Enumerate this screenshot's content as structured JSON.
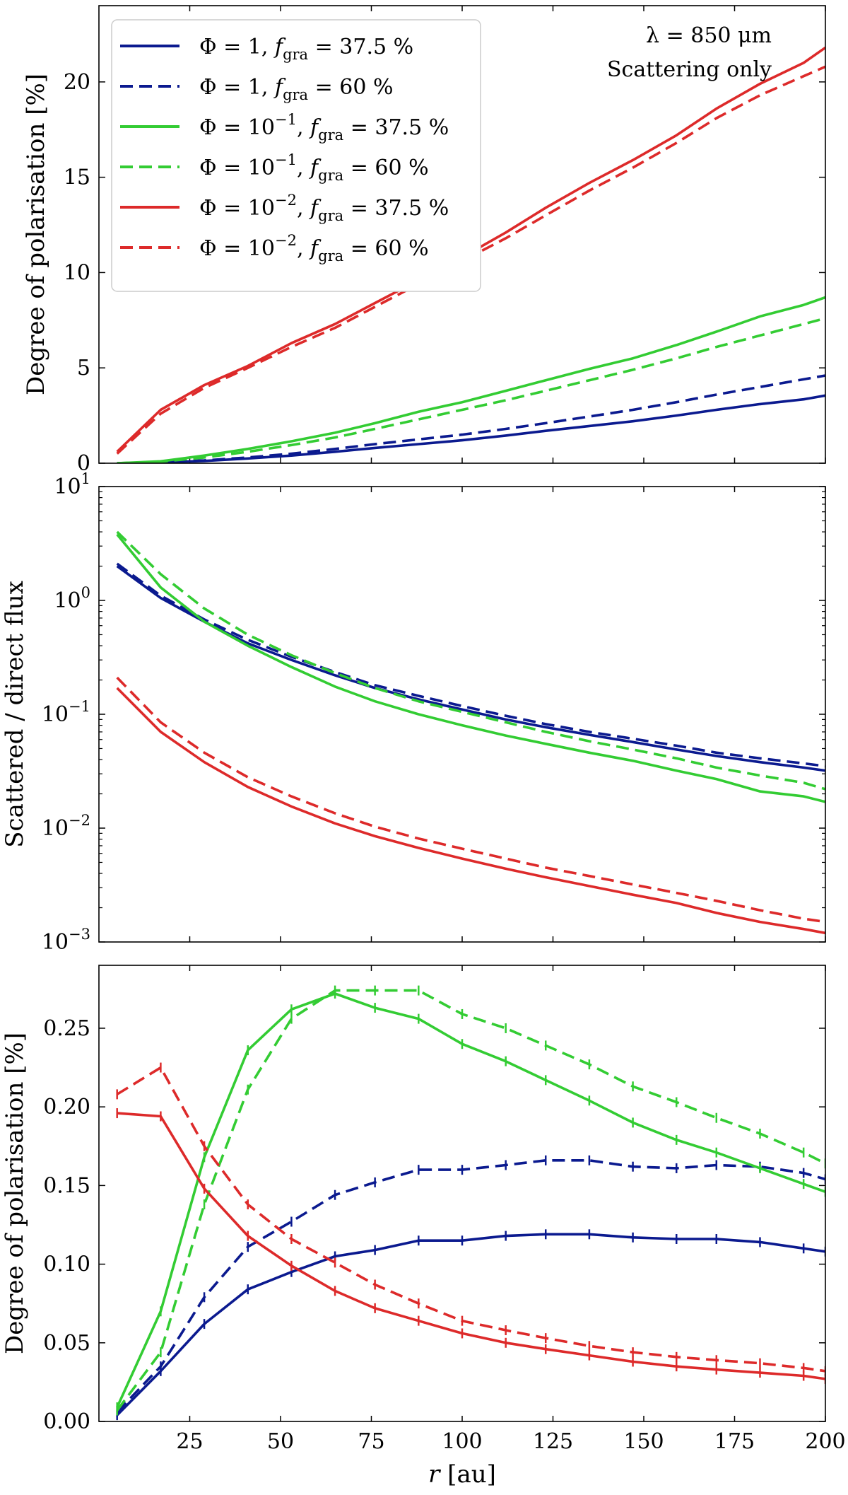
{
  "colors": {
    "blue": "#0b1a8f",
    "green": "#33cc33",
    "red": "#dd2a2a"
  },
  "chart_data": [
    {
      "type": "line",
      "panel": "top",
      "ylabel": "Degree of polarisation [%]",
      "yscale": "linear",
      "ylim": [
        0,
        24
      ],
      "xlim": [
        0,
        200
      ],
      "yticks": [
        0,
        5,
        10,
        15,
        20
      ],
      "ytick_labels": [
        "0",
        "5",
        "10",
        "15",
        "20"
      ],
      "annotations": [
        "λ = 850 μm",
        "Scattering only"
      ],
      "legend": {
        "placement": "top-left",
        "entries": [
          {
            "phi": "Φ = 1",
            "f": "f",
            "sub": "gra",
            "value": "= 37.5 %",
            "color": "blue",
            "dash": false
          },
          {
            "phi": "Φ = 1",
            "f": "f",
            "sub": "gra",
            "value": "= 60 %",
            "color": "blue",
            "dash": true
          },
          {
            "phi": "Φ = 10",
            "sup": "−1",
            "f": "f",
            "sub": "gra",
            "value": "= 37.5 %",
            "color": "green",
            "dash": false
          },
          {
            "phi": "Φ = 10",
            "sup": "−1",
            "f": "f",
            "sub": "gra",
            "value": "= 60 %",
            "color": "green",
            "dash": true
          },
          {
            "phi": "Φ = 10",
            "sup": "−2",
            "f": "f",
            "sub": "gra",
            "value": "= 37.5 %",
            "color": "red",
            "dash": false
          },
          {
            "phi": "Φ = 10",
            "sup": "−2",
            "f": "f",
            "sub": "gra",
            "value": "= 60 %",
            "color": "red",
            "dash": true
          }
        ]
      },
      "x": [
        5,
        17,
        29,
        41,
        53,
        65,
        76,
        88,
        100,
        112,
        123,
        135,
        147,
        159,
        170,
        182,
        194,
        200
      ],
      "series": [
        {
          "name": "Φ = 1, f_gra = 37.5 %",
          "color": "blue",
          "dash": false,
          "errorbars": false,
          "values": [
            0,
            0.05,
            0.12,
            0.25,
            0.4,
            0.6,
            0.8,
            1.0,
            1.2,
            1.45,
            1.7,
            1.95,
            2.2,
            2.5,
            2.8,
            3.1,
            3.35,
            3.55
          ]
        },
        {
          "name": "Φ = 1, f_gra = 60 %",
          "color": "blue",
          "dash": true,
          "errorbars": false,
          "values": [
            0,
            0.05,
            0.15,
            0.3,
            0.5,
            0.75,
            1.0,
            1.25,
            1.5,
            1.8,
            2.1,
            2.45,
            2.8,
            3.2,
            3.6,
            4.0,
            4.4,
            4.6
          ]
        },
        {
          "name": "Φ = 10^-1, f_gra = 37.5 %",
          "color": "green",
          "dash": false,
          "errorbars": false,
          "values": [
            0,
            0.1,
            0.4,
            0.75,
            1.15,
            1.6,
            2.1,
            2.7,
            3.2,
            3.8,
            4.35,
            4.95,
            5.5,
            6.2,
            6.9,
            7.7,
            8.3,
            8.7
          ]
        },
        {
          "name": "Φ = 10^-1, f_gra = 60 %",
          "color": "green",
          "dash": true,
          "errorbars": false,
          "values": [
            0,
            0.08,
            0.3,
            0.6,
            0.95,
            1.35,
            1.8,
            2.3,
            2.8,
            3.3,
            3.8,
            4.35,
            4.9,
            5.5,
            6.1,
            6.7,
            7.3,
            7.6
          ]
        },
        {
          "name": "Φ = 10^-2, f_gra = 37.5 %",
          "color": "red",
          "dash": false,
          "errorbars": false,
          "values": [
            0.6,
            2.8,
            4.1,
            5.1,
            6.3,
            7.3,
            8.4,
            9.6,
            10.8,
            12.1,
            13.4,
            14.7,
            15.9,
            17.2,
            18.6,
            19.9,
            21.0,
            21.8
          ]
        },
        {
          "name": "Φ = 10^-2, f_gra = 60 %",
          "color": "red",
          "dash": true,
          "errorbars": false,
          "values": [
            0.5,
            2.6,
            3.95,
            5.0,
            6.1,
            7.1,
            8.2,
            9.4,
            10.6,
            11.8,
            13.0,
            14.3,
            15.5,
            16.8,
            18.1,
            19.3,
            20.3,
            20.8
          ]
        }
      ]
    },
    {
      "type": "line",
      "panel": "middle",
      "ylabel": "Scattered / direct flux",
      "yscale": "log",
      "ylim": [
        0.001,
        10
      ],
      "xlim": [
        0,
        200
      ],
      "yticks": [
        0.001,
        0.01,
        0.1,
        1,
        10
      ],
      "ytick_labels": [
        {
          "base": "10",
          "exp": "−3"
        },
        {
          "base": "10",
          "exp": "−2"
        },
        {
          "base": "10",
          "exp": "−1"
        },
        {
          "base": "10",
          "exp": "0"
        },
        {
          "base": "10",
          "exp": "1"
        }
      ],
      "x": [
        5,
        17,
        29,
        41,
        53,
        65,
        76,
        88,
        100,
        112,
        123,
        135,
        147,
        159,
        170,
        182,
        194,
        200
      ],
      "series": [
        {
          "name": "Φ = 1, f_gra = 37.5 %",
          "color": "blue",
          "dash": false,
          "values": [
            2.0,
            1.05,
            0.65,
            0.42,
            0.3,
            0.22,
            0.17,
            0.135,
            0.11,
            0.09,
            0.077,
            0.066,
            0.057,
            0.049,
            0.043,
            0.038,
            0.034,
            0.032
          ]
        },
        {
          "name": "Φ = 1, f_gra = 60 %",
          "color": "blue",
          "dash": true,
          "values": [
            2.1,
            1.1,
            0.68,
            0.45,
            0.32,
            0.235,
            0.18,
            0.145,
            0.118,
            0.097,
            0.082,
            0.07,
            0.061,
            0.053,
            0.046,
            0.041,
            0.037,
            0.035
          ]
        },
        {
          "name": "Φ = 10^-1, f_gra = 37.5 %",
          "color": "green",
          "dash": false,
          "values": [
            3.8,
            1.3,
            0.65,
            0.4,
            0.26,
            0.175,
            0.13,
            0.1,
            0.08,
            0.065,
            0.055,
            0.046,
            0.039,
            0.032,
            0.027,
            0.021,
            0.019,
            0.017
          ]
        },
        {
          "name": "Φ = 10^-1, f_gra = 60 %",
          "color": "green",
          "dash": true,
          "values": [
            4.0,
            1.7,
            0.85,
            0.5,
            0.33,
            0.23,
            0.17,
            0.13,
            0.105,
            0.085,
            0.07,
            0.058,
            0.049,
            0.041,
            0.034,
            0.029,
            0.025,
            0.022
          ]
        },
        {
          "name": "Φ = 10^-2, f_gra = 37.5 %",
          "color": "red",
          "dash": false,
          "values": [
            0.17,
            0.07,
            0.038,
            0.023,
            0.0155,
            0.011,
            0.0085,
            0.0067,
            0.0054,
            0.0044,
            0.0037,
            0.0031,
            0.0026,
            0.0022,
            0.0018,
            0.0015,
            0.0013,
            0.0012
          ]
        },
        {
          "name": "Φ = 10^-2, f_gra = 60 %",
          "color": "red",
          "dash": true,
          "values": [
            0.21,
            0.085,
            0.046,
            0.028,
            0.019,
            0.0135,
            0.0103,
            0.0081,
            0.0066,
            0.0054,
            0.0045,
            0.0038,
            0.0032,
            0.0027,
            0.0023,
            0.0019,
            0.0016,
            0.0015
          ]
        }
      ]
    },
    {
      "type": "line",
      "panel": "bottom",
      "ylabel": "Degree of polarisation [%]",
      "xlabel_italic": "r",
      "xlabel_rest": " [au]",
      "yscale": "linear",
      "ylim": [
        0,
        0.29
      ],
      "xlim": [
        0,
        200
      ],
      "xticks": [
        25,
        50,
        75,
        100,
        125,
        150,
        175,
        200
      ],
      "xtick_labels": [
        "25",
        "50",
        "75",
        "100",
        "125",
        "150",
        "175",
        "200"
      ],
      "yticks": [
        0,
        0.05,
        0.1,
        0.15,
        0.2,
        0.25
      ],
      "ytick_labels": [
        "0.00",
        "0.05",
        "0.10",
        "0.15",
        "0.20",
        "0.25"
      ],
      "x": [
        5,
        17,
        29,
        41,
        53,
        65,
        76,
        88,
        100,
        112,
        123,
        135,
        147,
        159,
        170,
        182,
        194,
        200
      ],
      "series": [
        {
          "name": "Φ = 1, f_gra = 37.5 %",
          "color": "blue",
          "dash": false,
          "errorbars": true,
          "values": [
            0.004,
            0.032,
            0.062,
            0.084,
            0.095,
            0.105,
            0.109,
            0.115,
            0.115,
            0.118,
            0.119,
            0.119,
            0.117,
            0.116,
            0.116,
            0.114,
            0.11,
            0.108
          ]
        },
        {
          "name": "Φ = 1, f_gra = 60 %",
          "color": "blue",
          "dash": true,
          "errorbars": true,
          "values": [
            0.006,
            0.035,
            0.079,
            0.111,
            0.127,
            0.144,
            0.152,
            0.16,
            0.16,
            0.163,
            0.166,
            0.166,
            0.162,
            0.161,
            0.163,
            0.162,
            0.158,
            0.154
          ]
        },
        {
          "name": "Φ = 10^-1, f_gra = 37.5 %",
          "color": "green",
          "dash": false,
          "errorbars": true,
          "values": [
            0.009,
            0.07,
            0.168,
            0.236,
            0.262,
            0.272,
            0.263,
            0.256,
            0.24,
            0.229,
            0.217,
            0.204,
            0.19,
            0.179,
            0.171,
            0.161,
            0.151,
            0.146
          ]
        },
        {
          "name": "Φ = 10^-1, f_gra = 60 %",
          "color": "green",
          "dash": true,
          "errorbars": true,
          "values": [
            0.007,
            0.044,
            0.138,
            0.211,
            0.256,
            0.274,
            0.274,
            0.274,
            0.259,
            0.25,
            0.239,
            0.227,
            0.213,
            0.203,
            0.193,
            0.183,
            0.171,
            0.164
          ]
        },
        {
          "name": "Φ = 10^-2, f_gra = 37.5 %",
          "color": "red",
          "dash": false,
          "errorbars": true,
          "values": [
            0.196,
            0.194,
            0.148,
            0.118,
            0.099,
            0.083,
            0.072,
            0.064,
            0.056,
            0.05,
            0.046,
            0.042,
            0.038,
            0.035,
            0.033,
            0.031,
            0.029,
            0.027
          ]
        },
        {
          "name": "Φ = 10^-2, f_gra = 60 %",
          "color": "red",
          "dash": true,
          "errorbars": true,
          "values": [
            0.208,
            0.225,
            0.175,
            0.138,
            0.116,
            0.101,
            0.087,
            0.075,
            0.064,
            0.058,
            0.053,
            0.048,
            0.044,
            0.041,
            0.039,
            0.037,
            0.034,
            0.032
          ]
        }
      ]
    }
  ]
}
